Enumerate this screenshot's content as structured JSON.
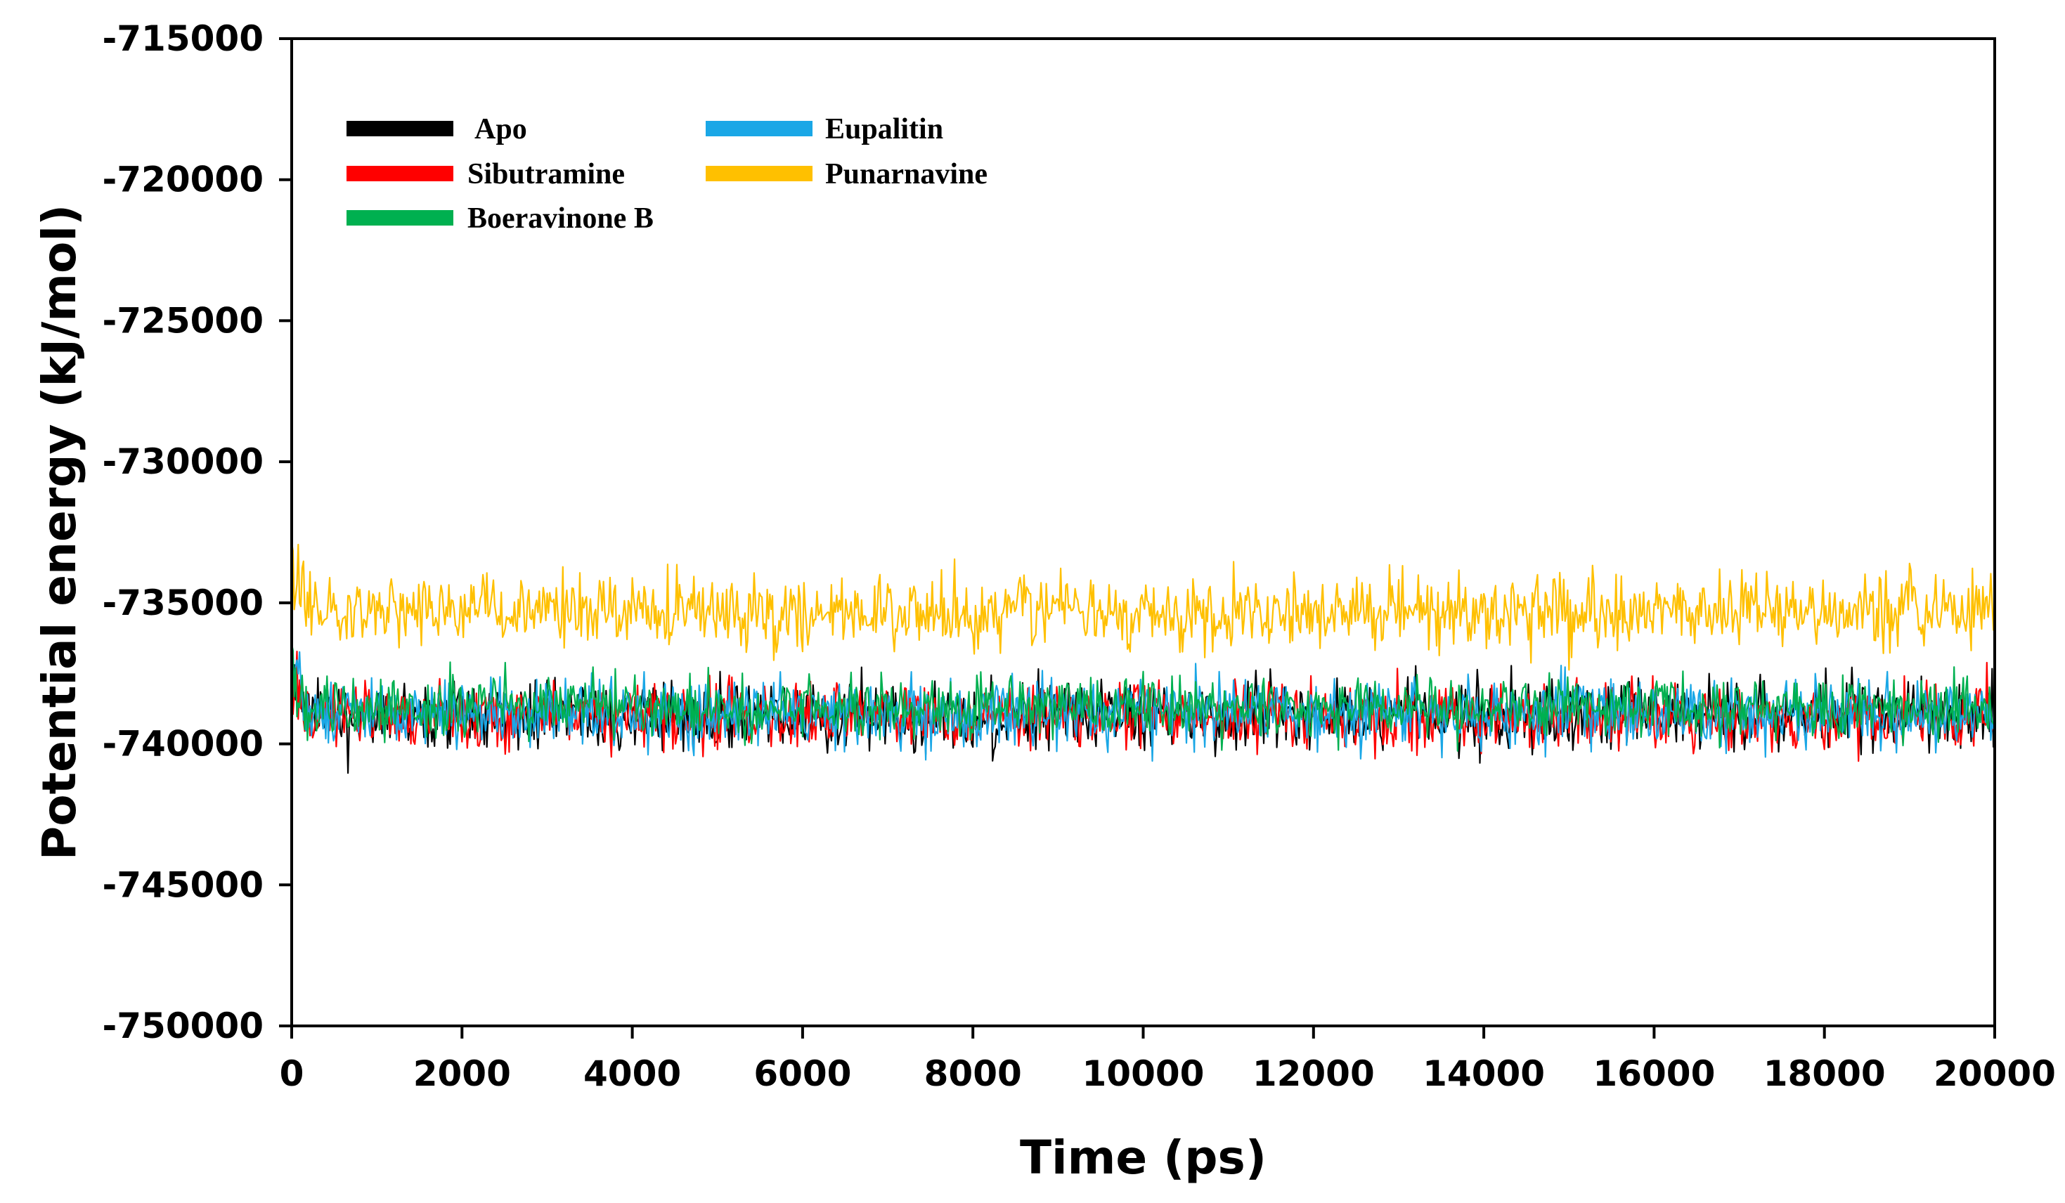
{
  "chart_data": {
    "type": "line",
    "xlabel": "Time (ps)",
    "ylabel": "Potential energy (kJ/mol)",
    "xlim": [
      0,
      20000
    ],
    "ylim": [
      -750000,
      -715000
    ],
    "x_ticks": [
      0,
      2000,
      4000,
      6000,
      8000,
      10000,
      12000,
      14000,
      16000,
      18000,
      20000
    ],
    "y_ticks": [
      -715000,
      -720000,
      -725000,
      -730000,
      -735000,
      -740000,
      -745000,
      -750000
    ],
    "grid": false,
    "legend_position": "top-left",
    "series": [
      {
        "name": "Apo",
        "color": "#000000",
        "mean": -739000,
        "min": -743000,
        "max": -736000
      },
      {
        "name": "Sibutramine",
        "color": "#ff0000",
        "mean": -739000,
        "min": -742500,
        "max": -736000
      },
      {
        "name": "Eupalitin",
        "color": "#1aa7e6",
        "mean": -738900,
        "min": -742700,
        "max": -735800
      },
      {
        "name": "Punarnavine",
        "color": "#ffc000",
        "mean": -735300,
        "min": -738500,
        "max": -731600
      },
      {
        "name": "Boeravinone B",
        "color": "#00b050",
        "mean": -738700,
        "min": -741500,
        "max": -735800
      }
    ]
  }
}
